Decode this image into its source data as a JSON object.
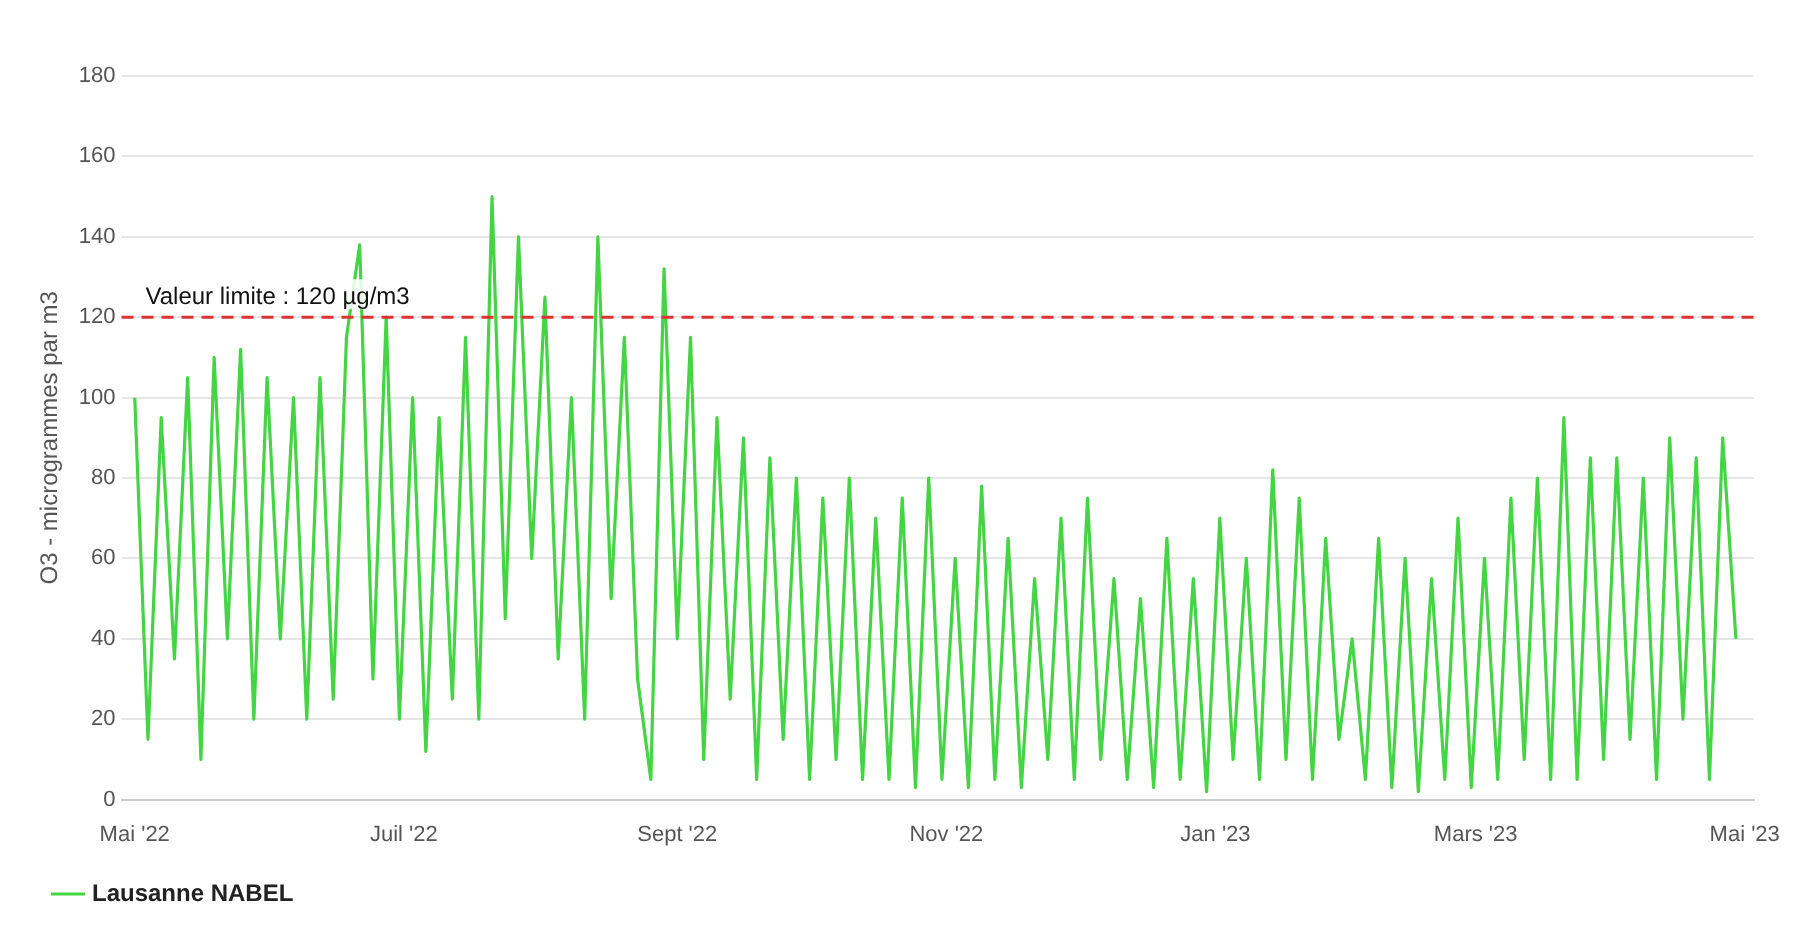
{
  "chart_data": {
    "type": "line",
    "ylabel": "O3 - microgrammes par m3",
    "x": [
      "2022-05-01",
      "2022-05-04",
      "2022-05-07",
      "2022-05-10",
      "2022-05-13",
      "2022-05-16",
      "2022-05-19",
      "2022-05-22",
      "2022-05-25",
      "2022-05-28",
      "2022-05-31",
      "2022-06-03",
      "2022-06-06",
      "2022-06-09",
      "2022-06-12",
      "2022-06-15",
      "2022-06-18",
      "2022-06-21",
      "2022-06-24",
      "2022-06-27",
      "2022-06-30",
      "2022-07-03",
      "2022-07-06",
      "2022-07-09",
      "2022-07-12",
      "2022-07-15",
      "2022-07-18",
      "2022-07-21",
      "2022-07-24",
      "2022-07-27",
      "2022-07-30",
      "2022-08-02",
      "2022-08-05",
      "2022-08-08",
      "2022-08-11",
      "2022-08-14",
      "2022-08-17",
      "2022-08-20",
      "2022-08-23",
      "2022-08-26",
      "2022-08-29",
      "2022-09-01",
      "2022-09-04",
      "2022-09-07",
      "2022-09-10",
      "2022-09-13",
      "2022-09-16",
      "2022-09-19",
      "2022-09-22",
      "2022-09-25",
      "2022-09-28",
      "2022-10-01",
      "2022-10-04",
      "2022-10-07",
      "2022-10-10",
      "2022-10-13",
      "2022-10-16",
      "2022-10-19",
      "2022-10-22",
      "2022-10-25",
      "2022-10-28",
      "2022-10-31",
      "2022-11-03",
      "2022-11-06",
      "2022-11-09",
      "2022-11-12",
      "2022-11-15",
      "2022-11-18",
      "2022-11-21",
      "2022-11-24",
      "2022-11-27",
      "2022-11-30",
      "2022-12-03",
      "2022-12-06",
      "2022-12-09",
      "2022-12-12",
      "2022-12-15",
      "2022-12-18",
      "2022-12-21",
      "2022-12-24",
      "2022-12-27",
      "2022-12-30",
      "2023-01-02",
      "2023-01-05",
      "2023-01-08",
      "2023-01-11",
      "2023-01-14",
      "2023-01-17",
      "2023-01-20",
      "2023-01-23",
      "2023-01-26",
      "2023-01-29",
      "2023-02-01",
      "2023-02-04",
      "2023-02-07",
      "2023-02-10",
      "2023-02-13",
      "2023-02-16",
      "2023-02-19",
      "2023-02-22",
      "2023-02-25",
      "2023-02-28",
      "2023-03-03",
      "2023-03-06",
      "2023-03-09",
      "2023-03-12",
      "2023-03-15",
      "2023-03-18",
      "2023-03-21",
      "2023-03-24",
      "2023-03-27",
      "2023-03-30",
      "2023-04-02",
      "2023-04-05",
      "2023-04-08",
      "2023-04-11",
      "2023-04-14",
      "2023-04-17",
      "2023-04-20",
      "2023-04-23",
      "2023-04-26",
      "2023-04-29"
    ],
    "series": [
      {
        "name": "Lausanne NABEL",
        "color": "#44d444",
        "values": [
          100,
          15,
          95,
          35,
          105,
          10,
          110,
          40,
          112,
          20,
          105,
          40,
          100,
          20,
          105,
          25,
          115,
          138,
          30,
          120,
          20,
          100,
          12,
          95,
          25,
          115,
          20,
          150,
          45,
          140,
          60,
          125,
          35,
          100,
          20,
          140,
          50,
          115,
          30,
          5,
          132,
          40,
          115,
          10,
          95,
          25,
          90,
          5,
          85,
          15,
          80,
          5,
          75,
          10,
          80,
          5,
          70,
          5,
          75,
          3,
          80,
          5,
          60,
          3,
          78,
          5,
          65,
          3,
          55,
          10,
          70,
          5,
          75,
          10,
          55,
          5,
          50,
          3,
          65,
          5,
          55,
          2,
          70,
          10,
          60,
          5,
          82,
          10,
          75,
          5,
          65,
          15,
          40,
          5,
          65,
          3,
          60,
          2,
          55,
          5,
          70,
          3,
          60,
          5,
          75,
          10,
          80,
          5,
          95,
          5,
          85,
          10,
          85,
          15,
          80,
          5,
          90,
          20,
          85,
          5,
          90,
          40
        ]
      }
    ],
    "xlim": [
      "2022-04-28",
      "2023-05-03"
    ],
    "xticks": [
      {
        "value": "2022-05-01",
        "label": "Mai '22"
      },
      {
        "value": "2022-07-01",
        "label": "Juil '22"
      },
      {
        "value": "2022-09-01",
        "label": "Sept '22"
      },
      {
        "value": "2022-11-01",
        "label": "Nov '22"
      },
      {
        "value": "2023-01-01",
        "label": "Jan '23"
      },
      {
        "value": "2023-03-01",
        "label": "Mars '23"
      },
      {
        "value": "2023-05-01",
        "label": "Mai '23"
      }
    ],
    "ylim": [
      0,
      180
    ],
    "yticks": [
      0,
      20,
      40,
      60,
      80,
      100,
      120,
      140,
      160,
      180
    ],
    "ref_lines": [
      {
        "axis": "y",
        "value": 120,
        "label": "Valeur limite : 120 µg/m3",
        "color": "#e03030",
        "line_style": "dashed"
      }
    ],
    "grid": "y",
    "legend": "bottom",
    "marker": "none",
    "line_style": "solid"
  }
}
